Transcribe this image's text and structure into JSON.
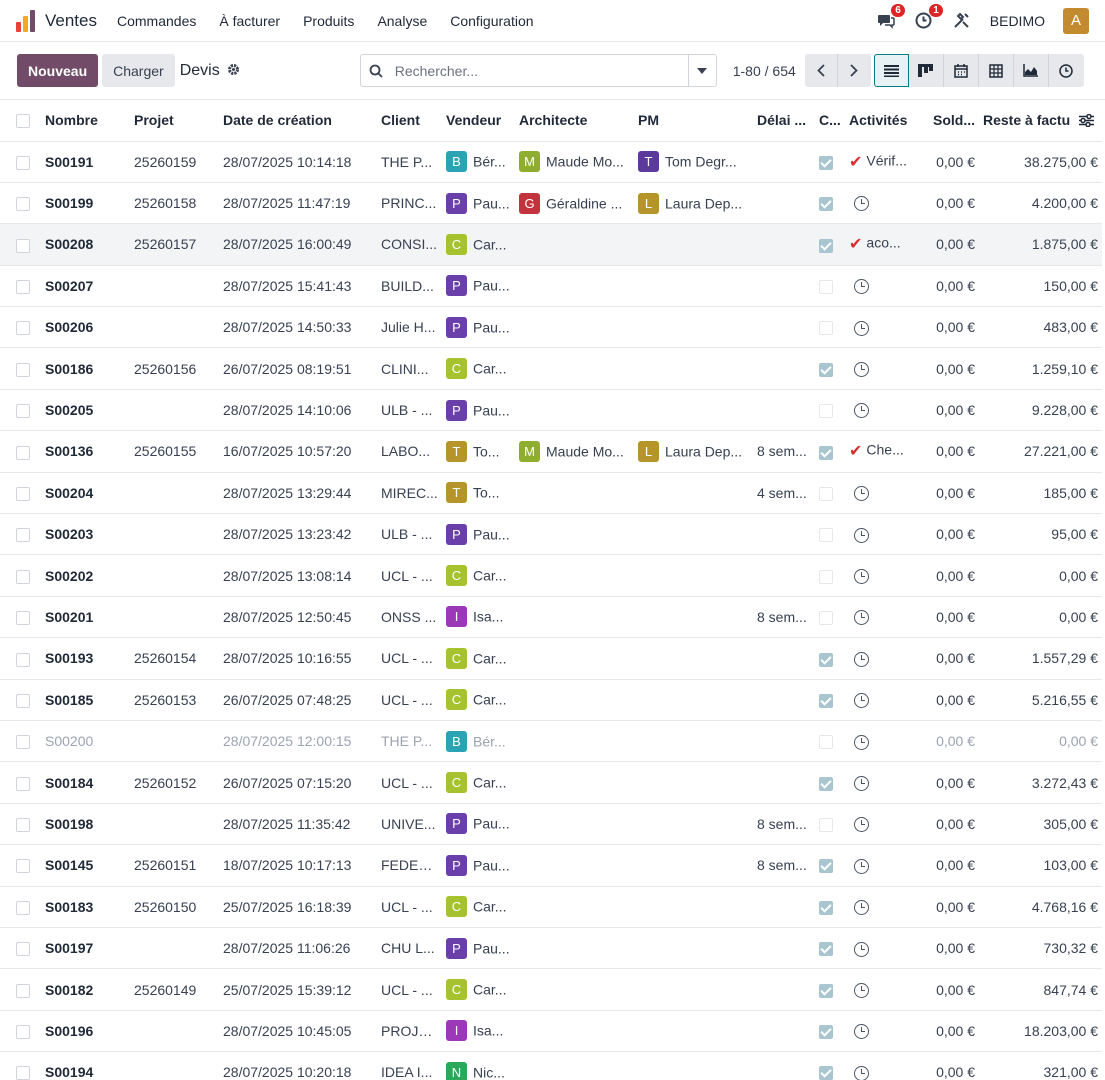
{
  "app": {
    "name": "Ventes",
    "menu": [
      "Commandes",
      "À facturer",
      "Produits",
      "Analyse",
      "Configuration"
    ],
    "chat_badge": "6",
    "activity_badge": "1",
    "company": "BEDIMO",
    "user_initial": "A"
  },
  "control": {
    "new_label": "Nouveau",
    "load_label": "Charger",
    "breadcrumb": "Devis",
    "search_placeholder": "Rechercher...",
    "pager": "1-80 / 654"
  },
  "columns": [
    "Nombre",
    "Projet",
    "Date de création",
    "Client",
    "Vendeur",
    "Architecte",
    "PM",
    "Délai ...",
    "C...",
    "Activités",
    "Sold...",
    "Reste à factu"
  ],
  "colors": {
    "accent": "#714b67",
    "B": "#2aa3b5",
    "P": "#6a3fa9",
    "G": "#c2333d",
    "M": "#8fae2f",
    "T": "#b5952a",
    "L": "#b5952a",
    "C": "#a6c22e",
    "I": "#9b38b7",
    "N": "#2aa95a",
    "T2": "#5b3a9b"
  },
  "rows": [
    {
      "ref": "S00191",
      "project": "25260159",
      "date": "28/07/2025 10:14:18",
      "client": "THE P...",
      "seller": {
        "i": "B",
        "n": "Bér...",
        "c": "#2aa3b5"
      },
      "arch": {
        "i": "M",
        "n": "Maude Mo...",
        "c": "#8fae2f"
      },
      "pm": {
        "i": "T",
        "n": "Tom Degr...",
        "c": "#5b3a9b"
      },
      "delay": "",
      "checked": true,
      "activity": "Vérif...",
      "activity_type": "done",
      "balance": "0,00 €",
      "rest": "38.275,00 €"
    },
    {
      "ref": "S00199",
      "project": "25260158",
      "date": "28/07/2025 11:47:19",
      "client": "PRINC...",
      "seller": {
        "i": "P",
        "n": "Pau...",
        "c": "#6a3fa9"
      },
      "arch": {
        "i": "G",
        "n": "Géraldine ...",
        "c": "#c2333d"
      },
      "pm": {
        "i": "L",
        "n": "Laura Dep...",
        "c": "#b5952a"
      },
      "delay": "",
      "checked": true,
      "activity": "",
      "activity_type": "clock",
      "balance": "0,00 €",
      "rest": "4.200,00 €"
    },
    {
      "ref": "S00208",
      "project": "25260157",
      "date": "28/07/2025 16:00:49",
      "client": "CONSI...",
      "seller": {
        "i": "C",
        "n": "Car...",
        "c": "#a6c22e"
      },
      "arch": null,
      "pm": null,
      "delay": "",
      "checked": true,
      "activity": "aco...",
      "activity_type": "done",
      "balance": "0,00 €",
      "rest": "1.875,00 €",
      "selected": true
    },
    {
      "ref": "S00207",
      "project": "",
      "date": "28/07/2025 15:41:43",
      "client": "BUILD...",
      "seller": {
        "i": "P",
        "n": "Pau...",
        "c": "#6a3fa9"
      },
      "arch": null,
      "pm": null,
      "delay": "",
      "checked": false,
      "activity": "",
      "activity_type": "clock",
      "balance": "0,00 €",
      "rest": "150,00 €"
    },
    {
      "ref": "S00206",
      "project": "",
      "date": "28/07/2025 14:50:33",
      "client": "Julie H...",
      "seller": {
        "i": "P",
        "n": "Pau...",
        "c": "#6a3fa9"
      },
      "arch": null,
      "pm": null,
      "delay": "",
      "checked": false,
      "activity": "",
      "activity_type": "clock",
      "balance": "0,00 €",
      "rest": "483,00 €"
    },
    {
      "ref": "S00186",
      "project": "25260156",
      "date": "26/07/2025 08:19:51",
      "client": "CLINI...",
      "seller": {
        "i": "C",
        "n": "Car...",
        "c": "#a6c22e"
      },
      "arch": null,
      "pm": null,
      "delay": "",
      "checked": true,
      "activity": "",
      "activity_type": "clock",
      "balance": "0,00 €",
      "rest": "1.259,10 €"
    },
    {
      "ref": "S00205",
      "project": "",
      "date": "28/07/2025 14:10:06",
      "client": "ULB - ...",
      "seller": {
        "i": "P",
        "n": "Pau...",
        "c": "#6a3fa9"
      },
      "arch": null,
      "pm": null,
      "delay": "",
      "checked": false,
      "activity": "",
      "activity_type": "clock",
      "balance": "0,00 €",
      "rest": "9.228,00 €"
    },
    {
      "ref": "S00136",
      "project": "25260155",
      "date": "16/07/2025 10:57:20",
      "client": "LABO...",
      "seller": {
        "i": "T",
        "n": "To...",
        "c": "#b5952a"
      },
      "arch": {
        "i": "M",
        "n": "Maude Mo...",
        "c": "#8fae2f"
      },
      "pm": {
        "i": "L",
        "n": "Laura Dep...",
        "c": "#b5952a"
      },
      "delay": "8 sem...",
      "checked": true,
      "activity": "Che...",
      "activity_type": "done",
      "balance": "0,00 €",
      "rest": "27.221,00 €"
    },
    {
      "ref": "S00204",
      "project": "",
      "date": "28/07/2025 13:29:44",
      "client": "MIREC...",
      "seller": {
        "i": "T",
        "n": "To...",
        "c": "#b5952a"
      },
      "arch": null,
      "pm": null,
      "delay": "4 sem...",
      "checked": false,
      "activity": "",
      "activity_type": "clock",
      "balance": "0,00 €",
      "rest": "185,00 €"
    },
    {
      "ref": "S00203",
      "project": "",
      "date": "28/07/2025 13:23:42",
      "client": "ULB - ...",
      "seller": {
        "i": "P",
        "n": "Pau...",
        "c": "#6a3fa9"
      },
      "arch": null,
      "pm": null,
      "delay": "",
      "checked": false,
      "activity": "",
      "activity_type": "clock",
      "balance": "0,00 €",
      "rest": "95,00 €"
    },
    {
      "ref": "S00202",
      "project": "",
      "date": "28/07/2025 13:08:14",
      "client": "UCL - ...",
      "seller": {
        "i": "C",
        "n": "Car...",
        "c": "#a6c22e"
      },
      "arch": null,
      "pm": null,
      "delay": "",
      "checked": false,
      "activity": "",
      "activity_type": "clock",
      "balance": "0,00 €",
      "rest": "0,00 €"
    },
    {
      "ref": "S00201",
      "project": "",
      "date": "28/07/2025 12:50:45",
      "client": "ONSS ...",
      "seller": {
        "i": "I",
        "n": "Isa...",
        "c": "#9b38b7"
      },
      "arch": null,
      "pm": null,
      "delay": "8 sem...",
      "checked": false,
      "activity": "",
      "activity_type": "clock",
      "balance": "0,00 €",
      "rest": "0,00 €"
    },
    {
      "ref": "S00193",
      "project": "25260154",
      "date": "28/07/2025 10:16:55",
      "client": "UCL - ...",
      "seller": {
        "i": "C",
        "n": "Car...",
        "c": "#a6c22e"
      },
      "arch": null,
      "pm": null,
      "delay": "",
      "checked": true,
      "activity": "",
      "activity_type": "clock",
      "balance": "0,00 €",
      "rest": "1.557,29 €"
    },
    {
      "ref": "S00185",
      "project": "25260153",
      "date": "26/07/2025 07:48:25",
      "client": "UCL - ...",
      "seller": {
        "i": "C",
        "n": "Car...",
        "c": "#a6c22e"
      },
      "arch": null,
      "pm": null,
      "delay": "",
      "checked": true,
      "activity": "",
      "activity_type": "clock",
      "balance": "0,00 €",
      "rest": "5.216,55 €"
    },
    {
      "ref": "S00200",
      "project": "",
      "date": "28/07/2025 12:00:15",
      "client": "THE P...",
      "seller": {
        "i": "B",
        "n": "Bér...",
        "c": "#2aa3b5"
      },
      "arch": null,
      "pm": null,
      "delay": "",
      "checked": false,
      "activity": "",
      "activity_type": "clock",
      "balance": "0,00 €",
      "rest": "0,00 €",
      "muted": true
    },
    {
      "ref": "S00184",
      "project": "25260152",
      "date": "26/07/2025 07:15:20",
      "client": "UCL - ...",
      "seller": {
        "i": "C",
        "n": "Car...",
        "c": "#a6c22e"
      },
      "arch": null,
      "pm": null,
      "delay": "",
      "checked": true,
      "activity": "",
      "activity_type": "clock",
      "balance": "0,00 €",
      "rest": "3.272,43 €"
    },
    {
      "ref": "S00198",
      "project": "",
      "date": "28/07/2025 11:35:42",
      "client": "UNIVE...",
      "seller": {
        "i": "P",
        "n": "Pau...",
        "c": "#6a3fa9"
      },
      "arch": null,
      "pm": null,
      "delay": "8 sem...",
      "checked": false,
      "activity": "",
      "activity_type": "clock",
      "balance": "0,00 €",
      "rest": "305,00 €"
    },
    {
      "ref": "S00145",
      "project": "25260151",
      "date": "18/07/2025 10:17:13",
      "client": "FEDER...",
      "seller": {
        "i": "P",
        "n": "Pau...",
        "c": "#6a3fa9"
      },
      "arch": null,
      "pm": null,
      "delay": "8 sem...",
      "checked": true,
      "activity": "",
      "activity_type": "clock",
      "balance": "0,00 €",
      "rest": "103,00 €"
    },
    {
      "ref": "S00183",
      "project": "25260150",
      "date": "25/07/2025 16:18:39",
      "client": "UCL - ...",
      "seller": {
        "i": "C",
        "n": "Car...",
        "c": "#a6c22e"
      },
      "arch": null,
      "pm": null,
      "delay": "",
      "checked": true,
      "activity": "",
      "activity_type": "clock",
      "balance": "0,00 €",
      "rest": "4.768,16 €"
    },
    {
      "ref": "S00197",
      "project": "",
      "date": "28/07/2025 11:06:26",
      "client": "CHU L...",
      "seller": {
        "i": "P",
        "n": "Pau...",
        "c": "#6a3fa9"
      },
      "arch": null,
      "pm": null,
      "delay": "",
      "checked": true,
      "activity": "",
      "activity_type": "clock",
      "balance": "0,00 €",
      "rest": "730,32 €"
    },
    {
      "ref": "S00182",
      "project": "25260149",
      "date": "25/07/2025 15:39:12",
      "client": "UCL - ...",
      "seller": {
        "i": "C",
        "n": "Car...",
        "c": "#a6c22e"
      },
      "arch": null,
      "pm": null,
      "delay": "",
      "checked": true,
      "activity": "",
      "activity_type": "clock",
      "balance": "0,00 €",
      "rest": "847,74 €"
    },
    {
      "ref": "S00196",
      "project": "",
      "date": "28/07/2025 10:45:05",
      "client": "PROJE...",
      "seller": {
        "i": "I",
        "n": "Isa...",
        "c": "#9b38b7"
      },
      "arch": null,
      "pm": null,
      "delay": "",
      "checked": true,
      "activity": "",
      "activity_type": "clock",
      "balance": "0,00 €",
      "rest": "18.203,00 €"
    },
    {
      "ref": "S00194",
      "project": "",
      "date": "28/07/2025 10:20:18",
      "client": "IDEA I...",
      "seller": {
        "i": "N",
        "n": "Nic...",
        "c": "#2aa95a"
      },
      "arch": null,
      "pm": null,
      "delay": "",
      "checked": true,
      "activity": "",
      "activity_type": "clock",
      "balance": "0,00 €",
      "rest": "321,00 €"
    }
  ]
}
